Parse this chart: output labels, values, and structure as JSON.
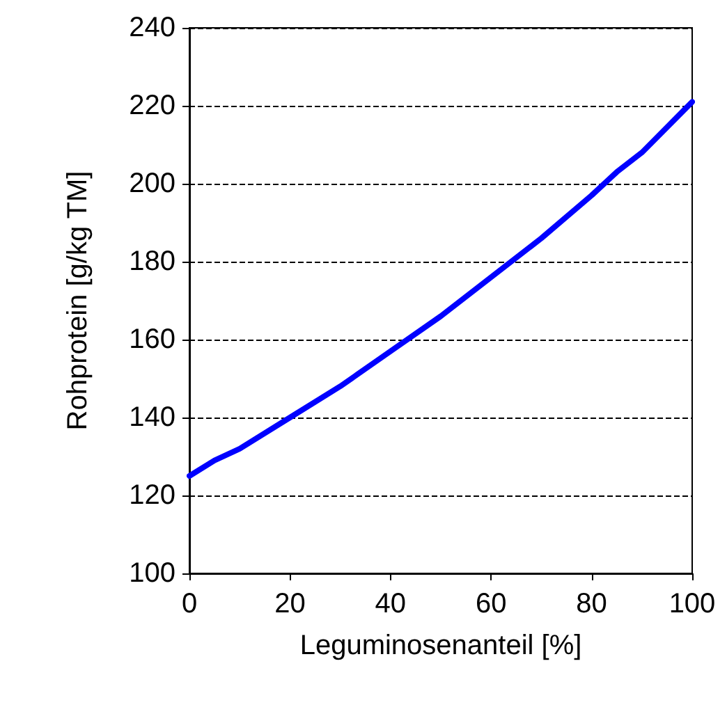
{
  "chart_data": {
    "type": "line",
    "xlabel": "Leguminosenanteil [%]",
    "ylabel": "Rohprotein [g/kg TM]",
    "x": [
      0,
      5,
      10,
      20,
      30,
      40,
      50,
      60,
      70,
      80,
      85,
      90,
      100
    ],
    "series": [
      {
        "color": "#0000ff",
        "values": [
          125,
          129,
          132,
          140,
          148,
          157,
          166,
          176,
          186,
          197,
          203,
          208,
          221
        ]
      }
    ],
    "xlim": [
      0,
      100
    ],
    "xticks": [
      0,
      20,
      40,
      60,
      80,
      100
    ],
    "ylim": [
      100,
      240
    ],
    "yticks": [
      100,
      120,
      140,
      160,
      180,
      200,
      220,
      240
    ],
    "grid": "y",
    "marker": "none",
    "line_style": "solid"
  }
}
